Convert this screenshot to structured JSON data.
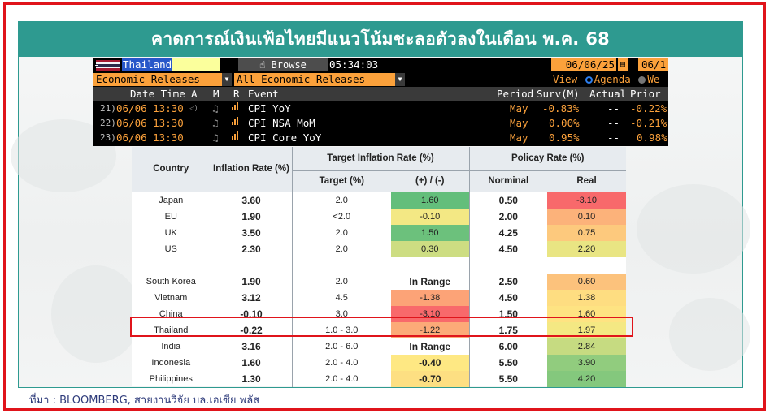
{
  "banner": {
    "title": "คาดการณ์เงินเฟ้อไทยมีแนวโน้มชะลอตัวลงในเดือน พ.ค. 68"
  },
  "terminal": {
    "ticker": "Thailand",
    "browse_label": "Browse",
    "browse_icon": "hand-pointer-icon",
    "clock": "05:34:03",
    "start_date": "06/06/25",
    "end_date": "06/1",
    "category_dropdown": "Economic Releases",
    "event_dropdown": "All Economic Releases",
    "view_label": "View",
    "view_options": [
      "Agenda",
      "We"
    ],
    "columns": [
      "Date Time",
      "A",
      "M",
      "R",
      "Event",
      "Period",
      "Surv(M)",
      "Actual",
      "Prior"
    ],
    "events": [
      {
        "num": "21)",
        "datetime": "06/06 13:30",
        "alert": "🔈",
        "event": "CPI YoY",
        "period": "May",
        "survey": "-0.83%",
        "actual": "--",
        "prior": "-0.22%"
      },
      {
        "num": "22)",
        "datetime": "06/06 13:30",
        "alert": "",
        "event": "CPI NSA MoM",
        "period": "May",
        "survey": "0.00%",
        "actual": "--",
        "prior": "-0.21%"
      },
      {
        "num": "23)",
        "datetime": "06/06 13:30",
        "alert": "",
        "event": "CPI Core YoY",
        "period": "May",
        "survey": "0.95%",
        "actual": "--",
        "prior": "0.98%"
      }
    ]
  },
  "table": {
    "headers": {
      "country": "Country",
      "inflation": "Inflation Rate (%)",
      "target_group": "Target Inflation Rate (%)",
      "target": "Target (%)",
      "diff": "(+) / (-)",
      "policy_group": "Policay Rate (%)",
      "nominal": "Norminal",
      "real": "Real"
    },
    "rows": [
      {
        "country": "Japan",
        "inflation": "3.60",
        "target": "2.0",
        "diff": "1.60",
        "diff_color": "#63be7b",
        "diff_bold": false,
        "nominal": "0.50",
        "real": "-3.10",
        "real_color": "#f8696b"
      },
      {
        "country": "EU",
        "inflation": "1.90",
        "target": "<2.0",
        "diff": "-0.10",
        "diff_color": "#f3e884",
        "diff_bold": false,
        "nominal": "2.00",
        "real": "0.10",
        "real_color": "#fcb27a"
      },
      {
        "country": "UK",
        "inflation": "3.50",
        "target": "2.0",
        "diff": "1.50",
        "diff_color": "#6cc17c",
        "diff_bold": false,
        "nominal": "4.25",
        "real": "0.75",
        "real_color": "#fdc97d"
      },
      {
        "country": "US",
        "inflation": "2.30",
        "target": "2.0",
        "diff": "0.30",
        "diff_color": "#cddd82",
        "diff_bold": false,
        "nominal": "4.50",
        "real": "2.20",
        "real_color": "#e9e583"
      },
      {
        "spacer": true
      },
      {
        "country": "South Korea",
        "inflation": "1.90",
        "target": "2.0",
        "diff": "In Range",
        "diff_color": "#ffffff",
        "diff_bold": true,
        "nominal": "2.50",
        "real": "0.60",
        "real_color": "#fcc27c"
      },
      {
        "country": "Vietnam",
        "inflation": "3.12",
        "target": "4.5",
        "diff": "-1.38",
        "diff_color": "#fca377",
        "diff_bold": false,
        "nominal": "4.50",
        "real": "1.38",
        "real_color": "#fedd81"
      },
      {
        "country": "China",
        "inflation": "-0.10",
        "target": "3.0",
        "diff": "-3.10",
        "diff_color": "#f8696b",
        "diff_bold": false,
        "nominal": "1.50",
        "real": "1.60",
        "real_color": "#fee382"
      },
      {
        "country": "Thailand",
        "inflation": "-0.22",
        "target": "1.0 - 3.0",
        "diff": "-1.22",
        "diff_color": "#fcaa78",
        "diff_bold": false,
        "nominal": "1.75",
        "real": "1.97",
        "real_color": "#f4e883"
      },
      {
        "country": "India",
        "inflation": "3.16",
        "target": "2.0 - 6.0",
        "diff": "In Range",
        "diff_color": "#ffffff",
        "diff_bold": true,
        "nominal": "6.00",
        "real": "2.84",
        "real_color": "#c6db81"
      },
      {
        "country": "Indonesia",
        "inflation": "1.60",
        "target": "2.0 - 4.0",
        "diff": "-0.40",
        "diff_color": "#fee883",
        "diff_bold": true,
        "nominal": "5.50",
        "real": "3.90",
        "real_color": "#91cc7e"
      },
      {
        "country": "Philippines",
        "inflation": "1.30",
        "target": "2.0 - 4.0",
        "diff": "-0.70",
        "diff_color": "#fddf82",
        "diff_bold": true,
        "nominal": "5.50",
        "real": "4.20",
        "real_color": "#84c87d"
      }
    ]
  },
  "source": "ที่มา : BLOOMBERG, สายงานวิจัย บล.เอเซีย พลัส"
}
